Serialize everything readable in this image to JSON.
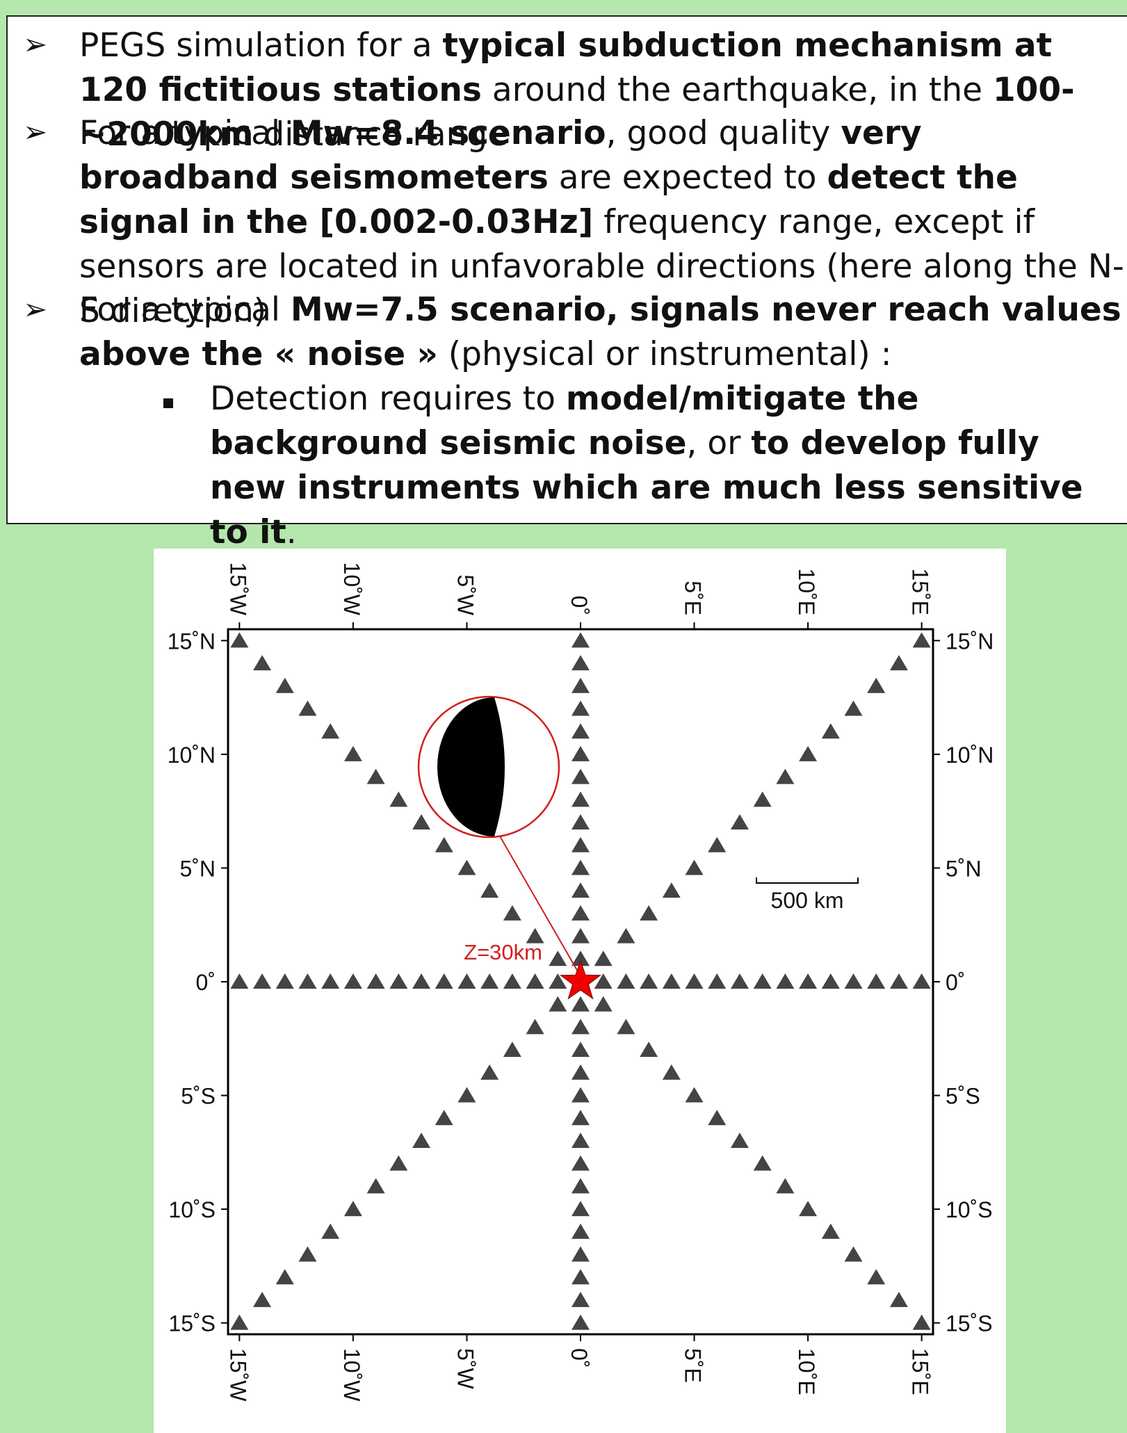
{
  "bullets": [
    {
      "parts": [
        {
          "t": "PEGS simulation for a ",
          "b": false
        },
        {
          "t": "typical subduction mechanism at 120 fictitious stations",
          "b": true
        },
        {
          "t": " around the earthquake, in the ",
          "b": false
        },
        {
          "t": "100-~2000km",
          "b": true
        },
        {
          "t": " distance range",
          "b": false
        }
      ]
    },
    {
      "parts": [
        {
          "t": "For a typical ",
          "b": false
        },
        {
          "t": "Mw=8.4 scenario",
          "b": true
        },
        {
          "t": ", good quality ",
          "b": false
        },
        {
          "t": "very broadband seismometers",
          "b": true
        },
        {
          "t": " are expected to ",
          "b": false
        },
        {
          "t": "detect the signal in the [0.002-0.03Hz]",
          "b": true
        },
        {
          "t": " frequency range, except if sensors are located in unfavorable directions (here along the N-S direction)",
          "b": false
        }
      ]
    },
    {
      "parts": [
        {
          "t": "For a typical ",
          "b": false
        },
        {
          "t": "Mw=7.5 scenario, signals never reach values above the « noise »",
          "b": true
        },
        {
          "t": " (physical or instrumental) :",
          "b": false
        }
      ]
    }
  ],
  "sub_bullet": {
    "parts": [
      {
        "t": "Detection requires to ",
        "b": false
      },
      {
        "t": "model/mitigate the background seismic noise",
        "b": true
      },
      {
        "t": ", or ",
        "b": false
      },
      {
        "t": "to develop fully new instruments which are much less sensitive to it",
        "b": true
      },
      {
        "t": ".",
        "b": false
      }
    ]
  },
  "map": {
    "lon_ticks": [
      {
        "v": -15,
        "label": "15˚W"
      },
      {
        "v": -10,
        "label": "10˚W"
      },
      {
        "v": -5,
        "label": "5˚W"
      },
      {
        "v": 0,
        "label": "0˚"
      },
      {
        "v": 5,
        "label": "5˚E"
      },
      {
        "v": 10,
        "label": "10˚E"
      },
      {
        "v": 15,
        "label": "15˚E"
      }
    ],
    "lat_ticks": [
      {
        "v": 15,
        "label": "15˚N"
      },
      {
        "v": 10,
        "label": "10˚N"
      },
      {
        "v": 5,
        "label": "5˚N"
      },
      {
        "v": 0,
        "label": "0˚"
      },
      {
        "v": -5,
        "label": "5˚S"
      },
      {
        "v": -10,
        "label": "10˚S"
      },
      {
        "v": -15,
        "label": "15˚S"
      }
    ],
    "lon_range": [
      -15.5,
      15.5
    ],
    "lat_range": [
      -15.5,
      15.5
    ],
    "epicenter": {
      "lon": 0,
      "lat": 0,
      "depth_label": "Z=30km"
    },
    "scale_bar_label": "500 km",
    "scale_bar_km": 500,
    "station_rays": 8,
    "stations_per_ray": 15,
    "station_max_deg": 15,
    "colors": {
      "station": "#444444",
      "epicenter": "#ee0000",
      "beachball_line": "#d21e1e"
    }
  }
}
